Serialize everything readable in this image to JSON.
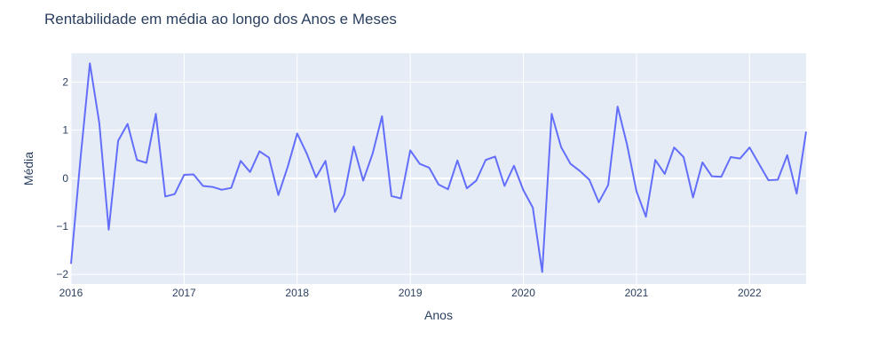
{
  "chart_data": {
    "type": "line",
    "title": "Rentabilidade em média ao longo dos Anos e Meses",
    "xlabel": "Anos",
    "ylabel": "Média",
    "x_tick_labels": [
      "2016",
      "2017",
      "2018",
      "2019",
      "2020",
      "2021",
      "2022"
    ],
    "y_tick_labels": [
      "−2",
      "−1",
      "0",
      "1",
      "2"
    ],
    "x_ticks": [
      "2016-01",
      "2017-01",
      "2018-01",
      "2019-01",
      "2020-01",
      "2021-01",
      "2022-01"
    ],
    "y_ticks": [
      -2,
      -1,
      0,
      1,
      2
    ],
    "xlim": [
      "2016-01",
      "2022-07"
    ],
    "ylim": [
      -2.2,
      2.6
    ],
    "grid": true,
    "colors": {
      "line": "#636efa",
      "plot_bg": "#e5ecf6",
      "grid": "#ffffff",
      "text": "#2a3f5f"
    },
    "series": [
      {
        "x": [
          "2016-01",
          "2016-02",
          "2016-03",
          "2016-04",
          "2016-05",
          "2016-06",
          "2016-07",
          "2016-08",
          "2016-09",
          "2016-10",
          "2016-11",
          "2016-12",
          "2017-01",
          "2017-02",
          "2017-03",
          "2017-04",
          "2017-05",
          "2017-06",
          "2017-07",
          "2017-08",
          "2017-09",
          "2017-10",
          "2017-11",
          "2017-12",
          "2018-01",
          "2018-02",
          "2018-03",
          "2018-04",
          "2018-05",
          "2018-06",
          "2018-07",
          "2018-08",
          "2018-09",
          "2018-10",
          "2018-11",
          "2018-12",
          "2019-01",
          "2019-02",
          "2019-03",
          "2019-04",
          "2019-05",
          "2019-06",
          "2019-07",
          "2019-08",
          "2019-09",
          "2019-10",
          "2019-11",
          "2019-12",
          "2020-01",
          "2020-02",
          "2020-03",
          "2020-04",
          "2020-05",
          "2020-06",
          "2020-07",
          "2020-08",
          "2020-09",
          "2020-10",
          "2020-11",
          "2020-12",
          "2021-01",
          "2021-02",
          "2021-03",
          "2021-04",
          "2021-05",
          "2021-06",
          "2021-07",
          "2021-08",
          "2021-09",
          "2021-10",
          "2021-11",
          "2021-12",
          "2022-01",
          "2022-02",
          "2022-03",
          "2022-04",
          "2022-05",
          "2022-06",
          "2022-07"
        ],
        "values": [
          -1.78,
          0.4,
          2.39,
          1.15,
          -1.07,
          0.78,
          1.13,
          0.38,
          0.32,
          1.34,
          -0.38,
          -0.33,
          0.07,
          0.08,
          -0.16,
          -0.18,
          -0.24,
          -0.2,
          0.36,
          0.13,
          0.56,
          0.43,
          -0.35,
          0.24,
          0.93,
          0.52,
          0.02,
          0.36,
          -0.7,
          -0.34,
          0.66,
          -0.05,
          0.51,
          1.29,
          -0.37,
          -0.42,
          0.58,
          0.3,
          0.22,
          -0.13,
          -0.23,
          0.37,
          -0.21,
          -0.05,
          0.38,
          0.45,
          -0.16,
          0.26,
          -0.25,
          -0.61,
          -1.95,
          1.34,
          0.65,
          0.3,
          0.15,
          -0.03,
          -0.5,
          -0.14,
          1.49,
          0.7,
          -0.27,
          -0.8,
          0.38,
          0.09,
          0.64,
          0.44,
          -0.4,
          0.33,
          0.04,
          0.03,
          0.44,
          0.41,
          0.64,
          0.3,
          -0.04,
          -0.03,
          0.48,
          -0.32,
          0.97
        ]
      }
    ]
  }
}
